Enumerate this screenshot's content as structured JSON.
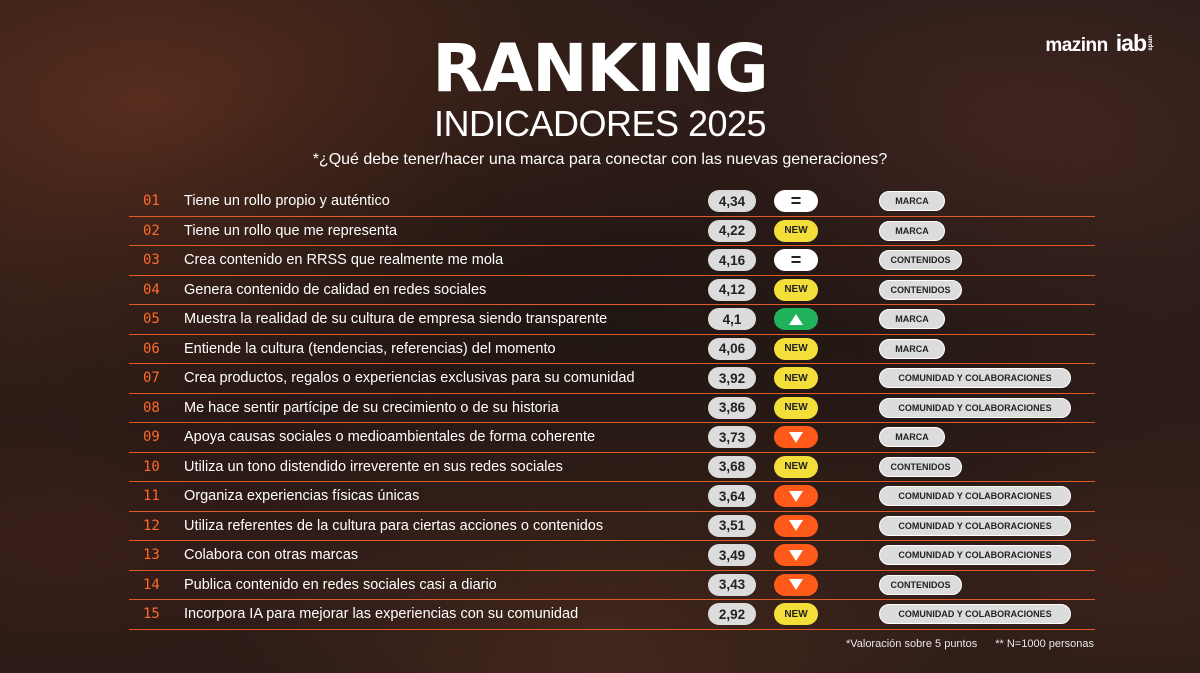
{
  "logos": {
    "mazinn": "mazinn",
    "iab": "iab",
    "iab_sub": "spain"
  },
  "header": {
    "title": "RANKING",
    "subtitle": "INDICADORES 2025",
    "question": "*¿Qué debe tener/hacer una marca para conectar con las nuevas generaciones?"
  },
  "colors": {
    "rank": "#ff6a2a",
    "divider": "#e05a26",
    "new": "#f4df3a",
    "up": "#1fb25a",
    "down": "#ff5a1a",
    "equal": "#ffffff"
  },
  "rows": [
    {
      "rank": "01",
      "text": "Tiene un rollo propio y auténtico",
      "score": "4,34",
      "trend": "equal",
      "trend_label": "=",
      "category": "MARCA"
    },
    {
      "rank": "02",
      "text": "Tiene un rollo que me representa",
      "score": "4,22",
      "trend": "new",
      "trend_label": "NEW",
      "category": "MARCA"
    },
    {
      "rank": "03",
      "text": "Crea contenido en RRSS que realmente me mola",
      "score": "4,16",
      "trend": "equal",
      "trend_label": "=",
      "category": "CONTENIDOS"
    },
    {
      "rank": "04",
      "text": "Genera contenido de calidad en redes sociales",
      "score": "4,12",
      "trend": "new",
      "trend_label": "NEW",
      "category": "CONTENIDOS"
    },
    {
      "rank": "05",
      "text": "Muestra la realidad de su cultura de empresa siendo transparente",
      "score": "4,1",
      "trend": "up",
      "trend_label": "",
      "category": "MARCA"
    },
    {
      "rank": "06",
      "text": "Entiende la cultura (tendencias, referencias) del momento",
      "score": "4,06",
      "trend": "new",
      "trend_label": "NEW",
      "category": "MARCA"
    },
    {
      "rank": "07",
      "text": "Crea productos, regalos o experiencias exclusivas para su comunidad",
      "score": "3,92",
      "trend": "new",
      "trend_label": "NEW",
      "category": "COMUNIDAD Y COLABORACIONES"
    },
    {
      "rank": "08",
      "text": "Me hace sentir partícipe de su crecimiento o de su historia",
      "score": "3,86",
      "trend": "new",
      "trend_label": "NEW",
      "category": "COMUNIDAD Y COLABORACIONES"
    },
    {
      "rank": "09",
      "text": "Apoya causas sociales o medioambientales de forma coherente",
      "score": "3,73",
      "trend": "down",
      "trend_label": "",
      "category": "MARCA"
    },
    {
      "rank": "10",
      "text": "Utiliza un tono distendido irreverente en sus redes sociales",
      "score": "3,68",
      "trend": "new",
      "trend_label": "NEW",
      "category": "CONTENIDOS"
    },
    {
      "rank": "11",
      "text": "Organiza experiencias físicas únicas",
      "score": "3,64",
      "trend": "down",
      "trend_label": "",
      "category": "COMUNIDAD Y COLABORACIONES"
    },
    {
      "rank": "12",
      "text": "Utiliza referentes de la cultura para ciertas acciones o contenidos",
      "score": "3,51",
      "trend": "down",
      "trend_label": "",
      "category": "COMUNIDAD Y COLABORACIONES"
    },
    {
      "rank": "13",
      "text": "Colabora con otras marcas",
      "score": "3,49",
      "trend": "down",
      "trend_label": "",
      "category": "COMUNIDAD Y COLABORACIONES"
    },
    {
      "rank": "14",
      "text": "Publica contenido en redes sociales casi a diario",
      "score": "3,43",
      "trend": "down",
      "trend_label": "",
      "category": "CONTENIDOS"
    },
    {
      "rank": "15",
      "text": "Incorpora IA para mejorar las experiencias con su comunidad",
      "score": "2,92",
      "trend": "new",
      "trend_label": "NEW",
      "category": "COMUNIDAD Y COLABORACIONES"
    }
  ],
  "footnotes": {
    "valoracion": "*Valoración sobre 5 puntos",
    "muestra": "** N=1000 personas"
  }
}
